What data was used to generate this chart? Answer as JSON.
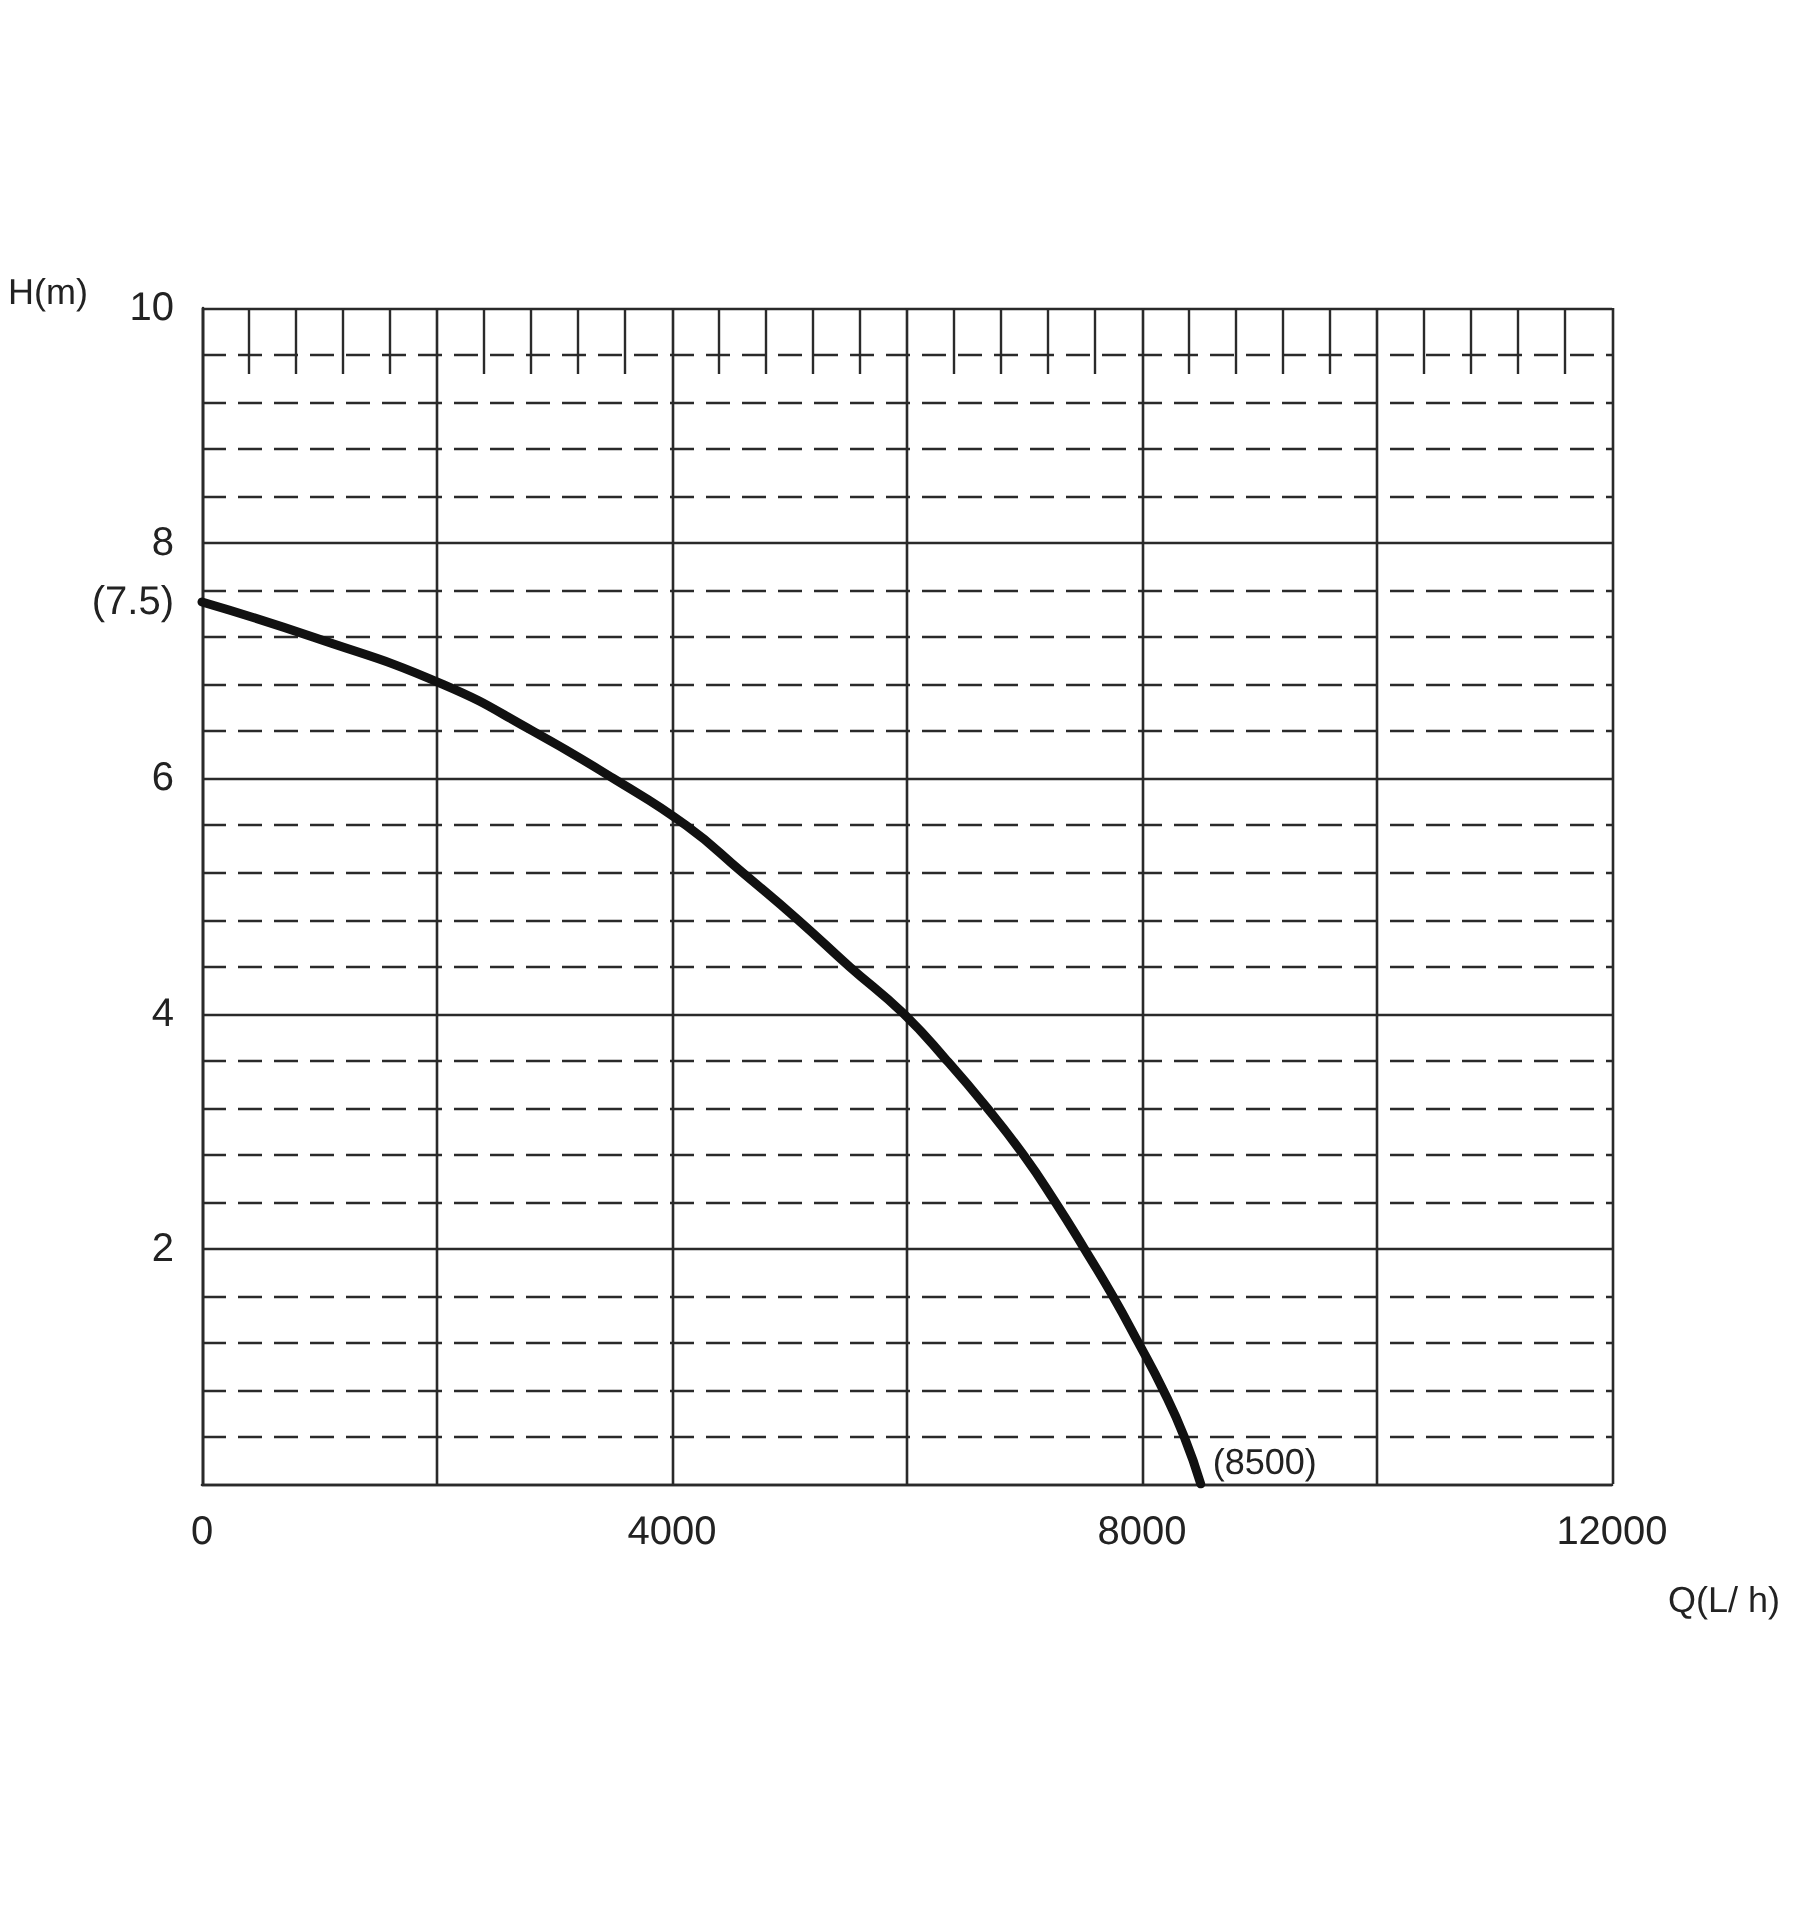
{
  "chart_data": {
    "type": "line",
    "xlabel": "Q(L/ h)",
    "ylabel": "H(m)",
    "x": [
      0,
      950,
      2050,
      2820,
      3500,
      4120,
      4600,
      5070,
      5510,
      5970,
      6340,
      6680,
      6990,
      7260,
      7510,
      7750,
      7970,
      8180,
      8360,
      8500
    ],
    "values": [
      7.5,
      7.2,
      6.8,
      6.4,
      6.0,
      5.6,
      5.2,
      4.8,
      4.4,
      4.0,
      3.6,
      3.2,
      2.8,
      2.4,
      2.0,
      1.6,
      1.2,
      0.8,
      0.4,
      0
    ],
    "color": "#111111",
    "line_style": "solid",
    "xlim": [
      0,
      12000
    ],
    "ylim": [
      0,
      10
    ],
    "xticks": [
      0,
      {
        "value": 2000,
        "label": null
      },
      4000,
      {
        "value": 6000,
        "label": null
      },
      8000,
      {
        "value": 10000,
        "label": null
      },
      12000
    ],
    "yticks": [
      {
        "value": 0,
        "label": null
      },
      2,
      4,
      6,
      {
        "value": 7.5,
        "label": "(7.5)"
      },
      8,
      10
    ],
    "annotations": [
      {
        "text": "(8500)",
        "x": 8500,
        "y": 0
      }
    ],
    "grid": true
  }
}
